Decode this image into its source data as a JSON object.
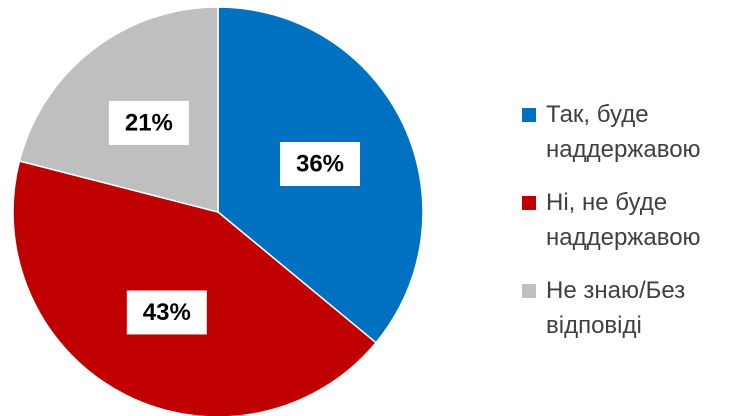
{
  "chart_data": {
    "type": "pie",
    "categories": [
      "Так, буде наддержавою",
      "Ні, не буде наддержавою",
      "Не знаю/Без відповіді"
    ],
    "values": [
      36,
      43,
      21
    ],
    "value_labels": [
      "36%",
      "43%",
      "21%"
    ],
    "colors": [
      "#0070c0",
      "#c00000",
      "#bfbfbf"
    ],
    "legend": "right"
  }
}
